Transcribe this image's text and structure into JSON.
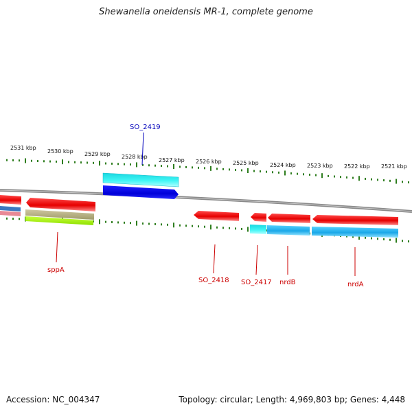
{
  "title": "Shewanella oneidensis MR-1, complete genome",
  "accession": "Accession: NC_004347",
  "summary": "Topology: circular; Length: 4,969,803 bp; Genes: 4,448",
  "colors": {
    "backbone": "#8a8a8a",
    "tick": "#2e7d1e",
    "label_red": "#cc0000",
    "label_blue": "#0000bb"
  },
  "scale_ticks": [
    "2531 kbp",
    "2530 kbp",
    "2529 kbp",
    "2528 kbp",
    "2527 kbp",
    "2526 kbp",
    "2525 kbp",
    "2524 kbp",
    "2523 kbp",
    "2522 kbp",
    "2521 kbp"
  ],
  "gene_labels": [
    "SO_2419",
    "sppA",
    "SO_2418",
    "SO_2417",
    "nrdB",
    "nrdA"
  ]
}
